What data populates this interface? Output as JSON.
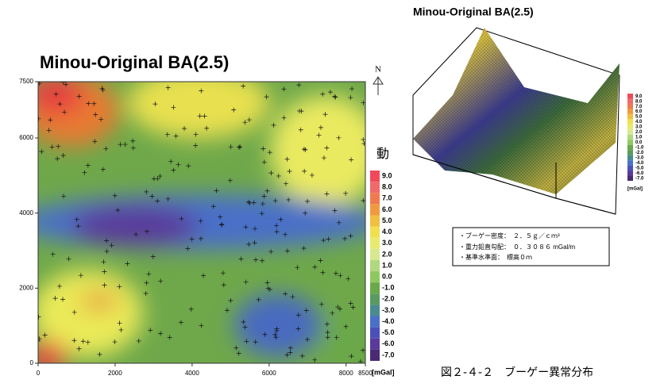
{
  "map": {
    "title": "Minou-Original BA(2.5)",
    "xticks": [
      0,
      2000,
      4000,
      6000,
      8000,
      8500
    ],
    "yticks": [
      0,
      2000,
      4000,
      6000,
      7500
    ],
    "north": "N",
    "mark": "動",
    "colorbar": {
      "labels": [
        "9.0",
        "8.0",
        "7.0",
        "6.0",
        "5.0",
        "4.0",
        "3.0",
        "2.0",
        "1.0",
        "0.0",
        "-1.0",
        "-2.0",
        "-3.0",
        "-4.0",
        "-5.0",
        "-6.0",
        "-7.0"
      ],
      "unit": "[mGal]"
    }
  },
  "view3d": {
    "title": "Minou-Original BA(2.5)",
    "colorbar": {
      "labels": [
        "9.0",
        "8.0",
        "7.0",
        "6.0",
        "5.0",
        "4.0",
        "3.0",
        "2.0",
        "1.0",
        "0.0",
        "-1.0",
        "-2.0",
        "-3.0",
        "-4.0",
        "-5.0",
        "-6.0",
        "-7.0"
      ],
      "unit": "[mGal]"
    }
  },
  "info": [
    "・ブーゲー密度：　２．５ｇ／ｃｍ³",
    "・重力鉛直勾配：　０．３０８６ mGal/m",
    "・基準水準面：　標高０ｍ"
  ],
  "caption": "図２-４-２　ブーゲー異常分布"
}
